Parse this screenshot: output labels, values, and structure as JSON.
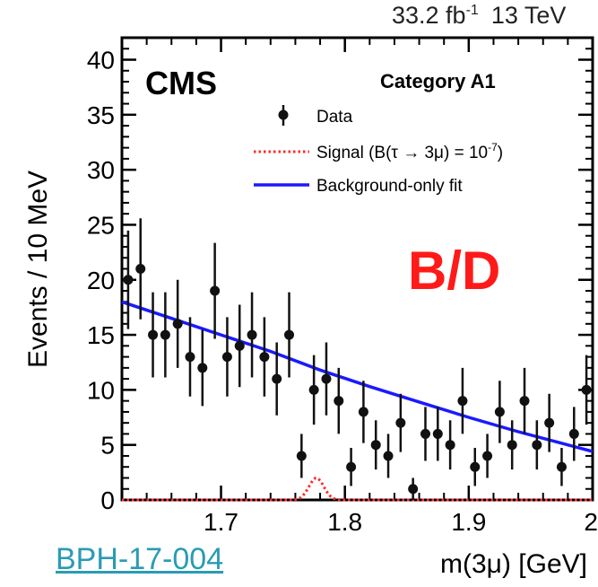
{
  "header": {
    "lumi_value": "33.2 fb",
    "lumi_exp": "-1",
    "energy": "13 TeV"
  },
  "experiment_label": "CMS",
  "category_label": "Category A1",
  "stamp": {
    "text": "B/D",
    "color": "#ff1a1a"
  },
  "reference_link": "BPH-17-004",
  "colors": {
    "data": "#111111",
    "signal": "#ff2a2a",
    "background": "#1a1aff",
    "link": "#2a9bb5"
  },
  "chart_data": {
    "type": "scatter",
    "xlabel": "m(3μ) [GeV]",
    "ylabel": "Events / 10 MeV",
    "xlim": [
      1.62,
      2.0
    ],
    "ylim": [
      0,
      42
    ],
    "x_ticks": [
      1.7,
      1.8,
      1.9,
      2.0
    ],
    "x_tick_labels": [
      "1.7",
      "1.8",
      "1.9",
      "2"
    ],
    "y_ticks": [
      0,
      5,
      10,
      15,
      20,
      25,
      30,
      35,
      40
    ],
    "y_tick_labels": [
      "0",
      "5",
      "10",
      "15",
      "20",
      "25",
      "30",
      "35",
      "40"
    ],
    "legend": {
      "placement": "top-right",
      "entries": [
        {
          "label": "Data",
          "style": "points"
        },
        {
          "label": "Signal (B(τ → 3μ) = 10",
          "label_sup": "-7",
          "label_end": ")",
          "style": "dotted-red"
        },
        {
          "label": "Background-only fit",
          "style": "solid-blue"
        }
      ]
    },
    "series": [
      {
        "name": "Data",
        "points": [
          {
            "x": 1.625,
            "y": 20
          },
          {
            "x": 1.635,
            "y": 21
          },
          {
            "x": 1.645,
            "y": 15
          },
          {
            "x": 1.655,
            "y": 15
          },
          {
            "x": 1.665,
            "y": 16
          },
          {
            "x": 1.675,
            "y": 13
          },
          {
            "x": 1.685,
            "y": 12
          },
          {
            "x": 1.695,
            "y": 19
          },
          {
            "x": 1.705,
            "y": 13
          },
          {
            "x": 1.715,
            "y": 14
          },
          {
            "x": 1.725,
            "y": 15
          },
          {
            "x": 1.735,
            "y": 13
          },
          {
            "x": 1.745,
            "y": 11
          },
          {
            "x": 1.755,
            "y": 15
          },
          {
            "x": 1.765,
            "y": 4
          },
          {
            "x": 1.775,
            "y": 10
          },
          {
            "x": 1.785,
            "y": 11
          },
          {
            "x": 1.795,
            "y": 9
          },
          {
            "x": 1.805,
            "y": 3
          },
          {
            "x": 1.815,
            "y": 8
          },
          {
            "x": 1.825,
            "y": 5
          },
          {
            "x": 1.835,
            "y": 4
          },
          {
            "x": 1.845,
            "y": 7
          },
          {
            "x": 1.855,
            "y": 1
          },
          {
            "x": 1.865,
            "y": 6
          },
          {
            "x": 1.875,
            "y": 6
          },
          {
            "x": 1.885,
            "y": 5
          },
          {
            "x": 1.895,
            "y": 9
          },
          {
            "x": 1.905,
            "y": 3
          },
          {
            "x": 1.915,
            "y": 4
          },
          {
            "x": 1.925,
            "y": 8
          },
          {
            "x": 1.935,
            "y": 5
          },
          {
            "x": 1.945,
            "y": 9
          },
          {
            "x": 1.955,
            "y": 5
          },
          {
            "x": 1.965,
            "y": 7
          },
          {
            "x": 1.975,
            "y": 3
          },
          {
            "x": 1.985,
            "y": 6
          },
          {
            "x": 1.995,
            "y": 10
          }
        ]
      },
      {
        "name": "Background-only fit",
        "points": [
          {
            "x": 1.62,
            "y": 18.0
          },
          {
            "x": 1.66,
            "y": 16.5
          },
          {
            "x": 1.7,
            "y": 15.0
          },
          {
            "x": 1.74,
            "y": 13.5
          },
          {
            "x": 1.78,
            "y": 11.8
          },
          {
            "x": 1.82,
            "y": 10.3
          },
          {
            "x": 1.86,
            "y": 8.9
          },
          {
            "x": 1.9,
            "y": 7.5
          },
          {
            "x": 1.94,
            "y": 6.2
          },
          {
            "x": 1.98,
            "y": 5.0
          },
          {
            "x": 2.0,
            "y": 4.4
          }
        ]
      },
      {
        "name": "Signal (B(τ → 3μ) = 10-7)",
        "peak_mean": 1.777,
        "peak_sigma": 0.006,
        "peak_height": 2.0
      }
    ]
  }
}
